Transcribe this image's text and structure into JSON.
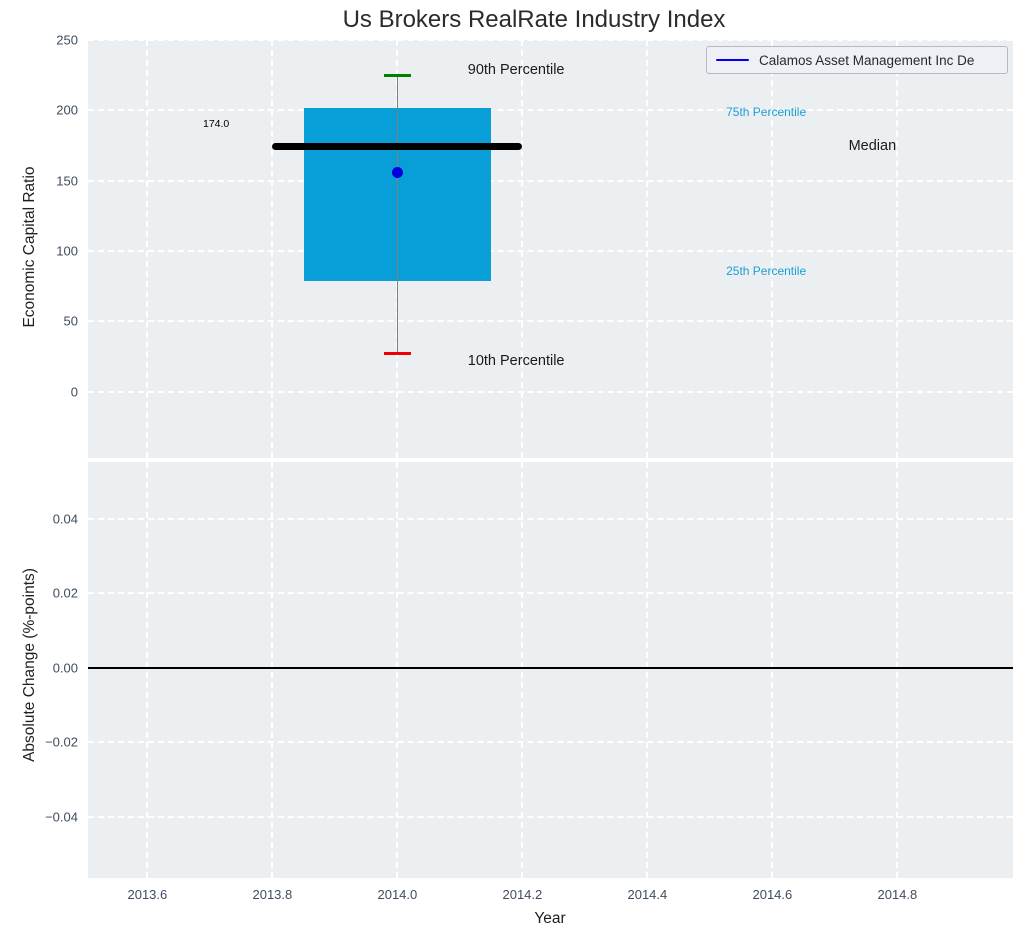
{
  "figure": {
    "background": "#ffffff",
    "plot_background": "#eceff1",
    "grid_color": "#ffffff",
    "tick_color": "#3f4d5f"
  },
  "legend": {
    "label": "Calamos Asset Management Inc De",
    "line_color": "#0000ee",
    "position": "upper right"
  },
  "chart_data": [
    {
      "type": "boxplot",
      "title": "Us Brokers RealRate Industry Index",
      "xlabel": "",
      "ylabel": "Economic Capital Ratio",
      "xlim": [
        2013.505,
        2014.985
      ],
      "ylim": [
        -47,
        250
      ],
      "grid": true,
      "xticklabels_visible": false,
      "xticks": [
        {
          "v": 2013.6,
          "label": "2013.6"
        },
        {
          "v": 2013.8,
          "label": "2013.8"
        },
        {
          "v": 2014.0,
          "label": "2014.0"
        },
        {
          "v": 2014.2,
          "label": "2014.2"
        },
        {
          "v": 2014.4,
          "label": "2014.4"
        },
        {
          "v": 2014.6,
          "label": "2014.6"
        },
        {
          "v": 2014.8,
          "label": "2014.8"
        }
      ],
      "yticks": [
        {
          "v": 0,
          "label": "0"
        },
        {
          "v": 50,
          "label": "50"
        },
        {
          "v": 100,
          "label": "100"
        },
        {
          "v": 150,
          "label": "150"
        },
        {
          "v": 200,
          "label": "200"
        },
        {
          "v": 250,
          "label": "250"
        }
      ],
      "series_name": "Calamos Asset Management Inc De",
      "box": {
        "x": 2014.0,
        "p10": 27,
        "p25": 79,
        "median": 174,
        "p75": 202,
        "p90": 225,
        "company_value": 156,
        "box_halfwidth": 0.15,
        "median_halfwidth": 0.2,
        "cap_halfwidth": 0.022,
        "box_color": "#089ed8",
        "median_color": "#000000",
        "whisker_color": "#808080",
        "cap_top_color": "#007f00",
        "cap_bottom_color": "#ee0000",
        "value_dot_color": "#0000dd"
      },
      "annotations": [
        {
          "text": "174.0",
          "x": 2013.71,
          "y": 190,
          "color": "#000000",
          "size": 10.5
        },
        {
          "text": "90th Percentile",
          "x": 2014.19,
          "y": 229,
          "color": "#1a1a1a",
          "size": 14.5
        },
        {
          "text": "10th Percentile",
          "x": 2014.19,
          "y": 22,
          "color": "#1a1a1a",
          "size": 14.5
        },
        {
          "text": "75th Percentile",
          "x": 2014.59,
          "y": 198.5,
          "color": "#18a0d4",
          "size": 12
        },
        {
          "text": "Median",
          "x": 2014.76,
          "y": 174.7,
          "color": "#1a1a1a",
          "size": 14.5
        },
        {
          "text": "25th Percentile",
          "x": 2014.59,
          "y": 86,
          "color": "#18a0d4",
          "size": 12
        }
      ]
    },
    {
      "type": "line",
      "title": "",
      "xlabel": "Year",
      "ylabel": "Absolute Change (%-points)",
      "xlim": [
        2013.505,
        2014.985
      ],
      "ylim": [
        -0.0565,
        0.0553
      ],
      "grid": true,
      "xticklabels_visible": true,
      "zero_line": true,
      "zero_line_color": "#000000",
      "xticks": [
        {
          "v": 2013.6,
          "label": "2013.6"
        },
        {
          "v": 2013.8,
          "label": "2013.8"
        },
        {
          "v": 2014.0,
          "label": "2014.0"
        },
        {
          "v": 2014.2,
          "label": "2014.2"
        },
        {
          "v": 2014.4,
          "label": "2014.4"
        },
        {
          "v": 2014.6,
          "label": "2014.6"
        },
        {
          "v": 2014.8,
          "label": "2014.8"
        }
      ],
      "yticks": [
        {
          "v": -0.04,
          "label": "−0.04"
        },
        {
          "v": -0.02,
          "label": "−0.02"
        },
        {
          "v": 0,
          "label": "0.00"
        },
        {
          "v": 0.02,
          "label": "0.02"
        },
        {
          "v": 0.04,
          "label": "0.04"
        }
      ],
      "series": []
    }
  ]
}
